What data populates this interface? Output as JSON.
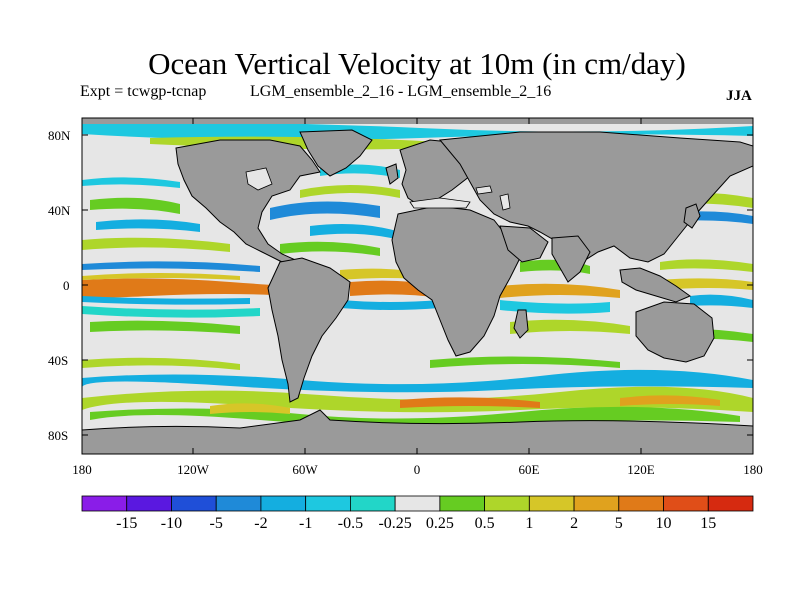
{
  "title": "Ocean Vertical Velocity at 10m (in cm/day)",
  "experiment_label": "Expt = tcwgp-tcnap",
  "ensemble_label": "LGM_ensemble_2_16 - LGM_ensemble_2_16",
  "season": "JJA",
  "lat_labels": [
    "80N",
    "40N",
    "0",
    "40S",
    "80S"
  ],
  "lon_labels": [
    "180",
    "120W",
    "60W",
    "0",
    "60E",
    "120E",
    "180"
  ],
  "colorbar": {
    "labels": [
      "-15",
      "-10",
      "-5",
      "-2",
      "-1",
      "-0.5",
      "-0.25",
      "0.25",
      "0.5",
      "1",
      "2",
      "5",
      "10",
      "15"
    ],
    "colors": [
      "#8a1de8",
      "#5a18e0",
      "#1f4fd8",
      "#1f8ad8",
      "#14aee0",
      "#1ec8e0",
      "#22d6c8",
      "#e6e6e6",
      "#66cc22",
      "#aed62a",
      "#d6c628",
      "#e0a21e",
      "#e07a18",
      "#e04e18",
      "#d62a10"
    ]
  },
  "colors": {
    "land": "#9a9a9a",
    "ocean_neutral": "#e6e6e6",
    "coastline": "#000000"
  }
}
